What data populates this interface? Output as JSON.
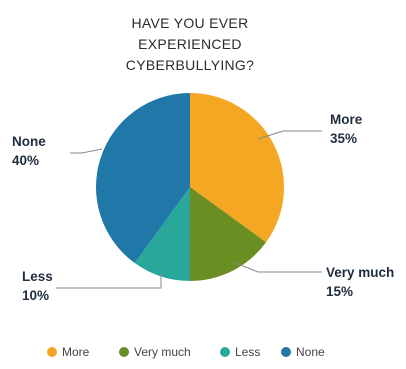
{
  "chart_data": {
    "type": "pie",
    "title_lines": [
      "HAVE YOU EVER",
      "EXPERIENCED",
      "CYBERBULLYING?"
    ],
    "slices": [
      {
        "name": "More",
        "value": 35,
        "label": "More",
        "pct_label": "35%",
        "color": "#f5a623"
      },
      {
        "name": "Very much",
        "value": 15,
        "label": "Very much",
        "pct_label": "15%",
        "color": "#6b8e23"
      },
      {
        "name": "Less",
        "value": 10,
        "label": "Less",
        "pct_label": "10%",
        "color": "#2aa79b"
      },
      {
        "name": "None",
        "value": 40,
        "label": "None",
        "pct_label": "40%",
        "color": "#1f78a8"
      }
    ],
    "legend": [
      "More",
      "Very much",
      "Less",
      "None"
    ],
    "legend_placement": "bottom"
  }
}
